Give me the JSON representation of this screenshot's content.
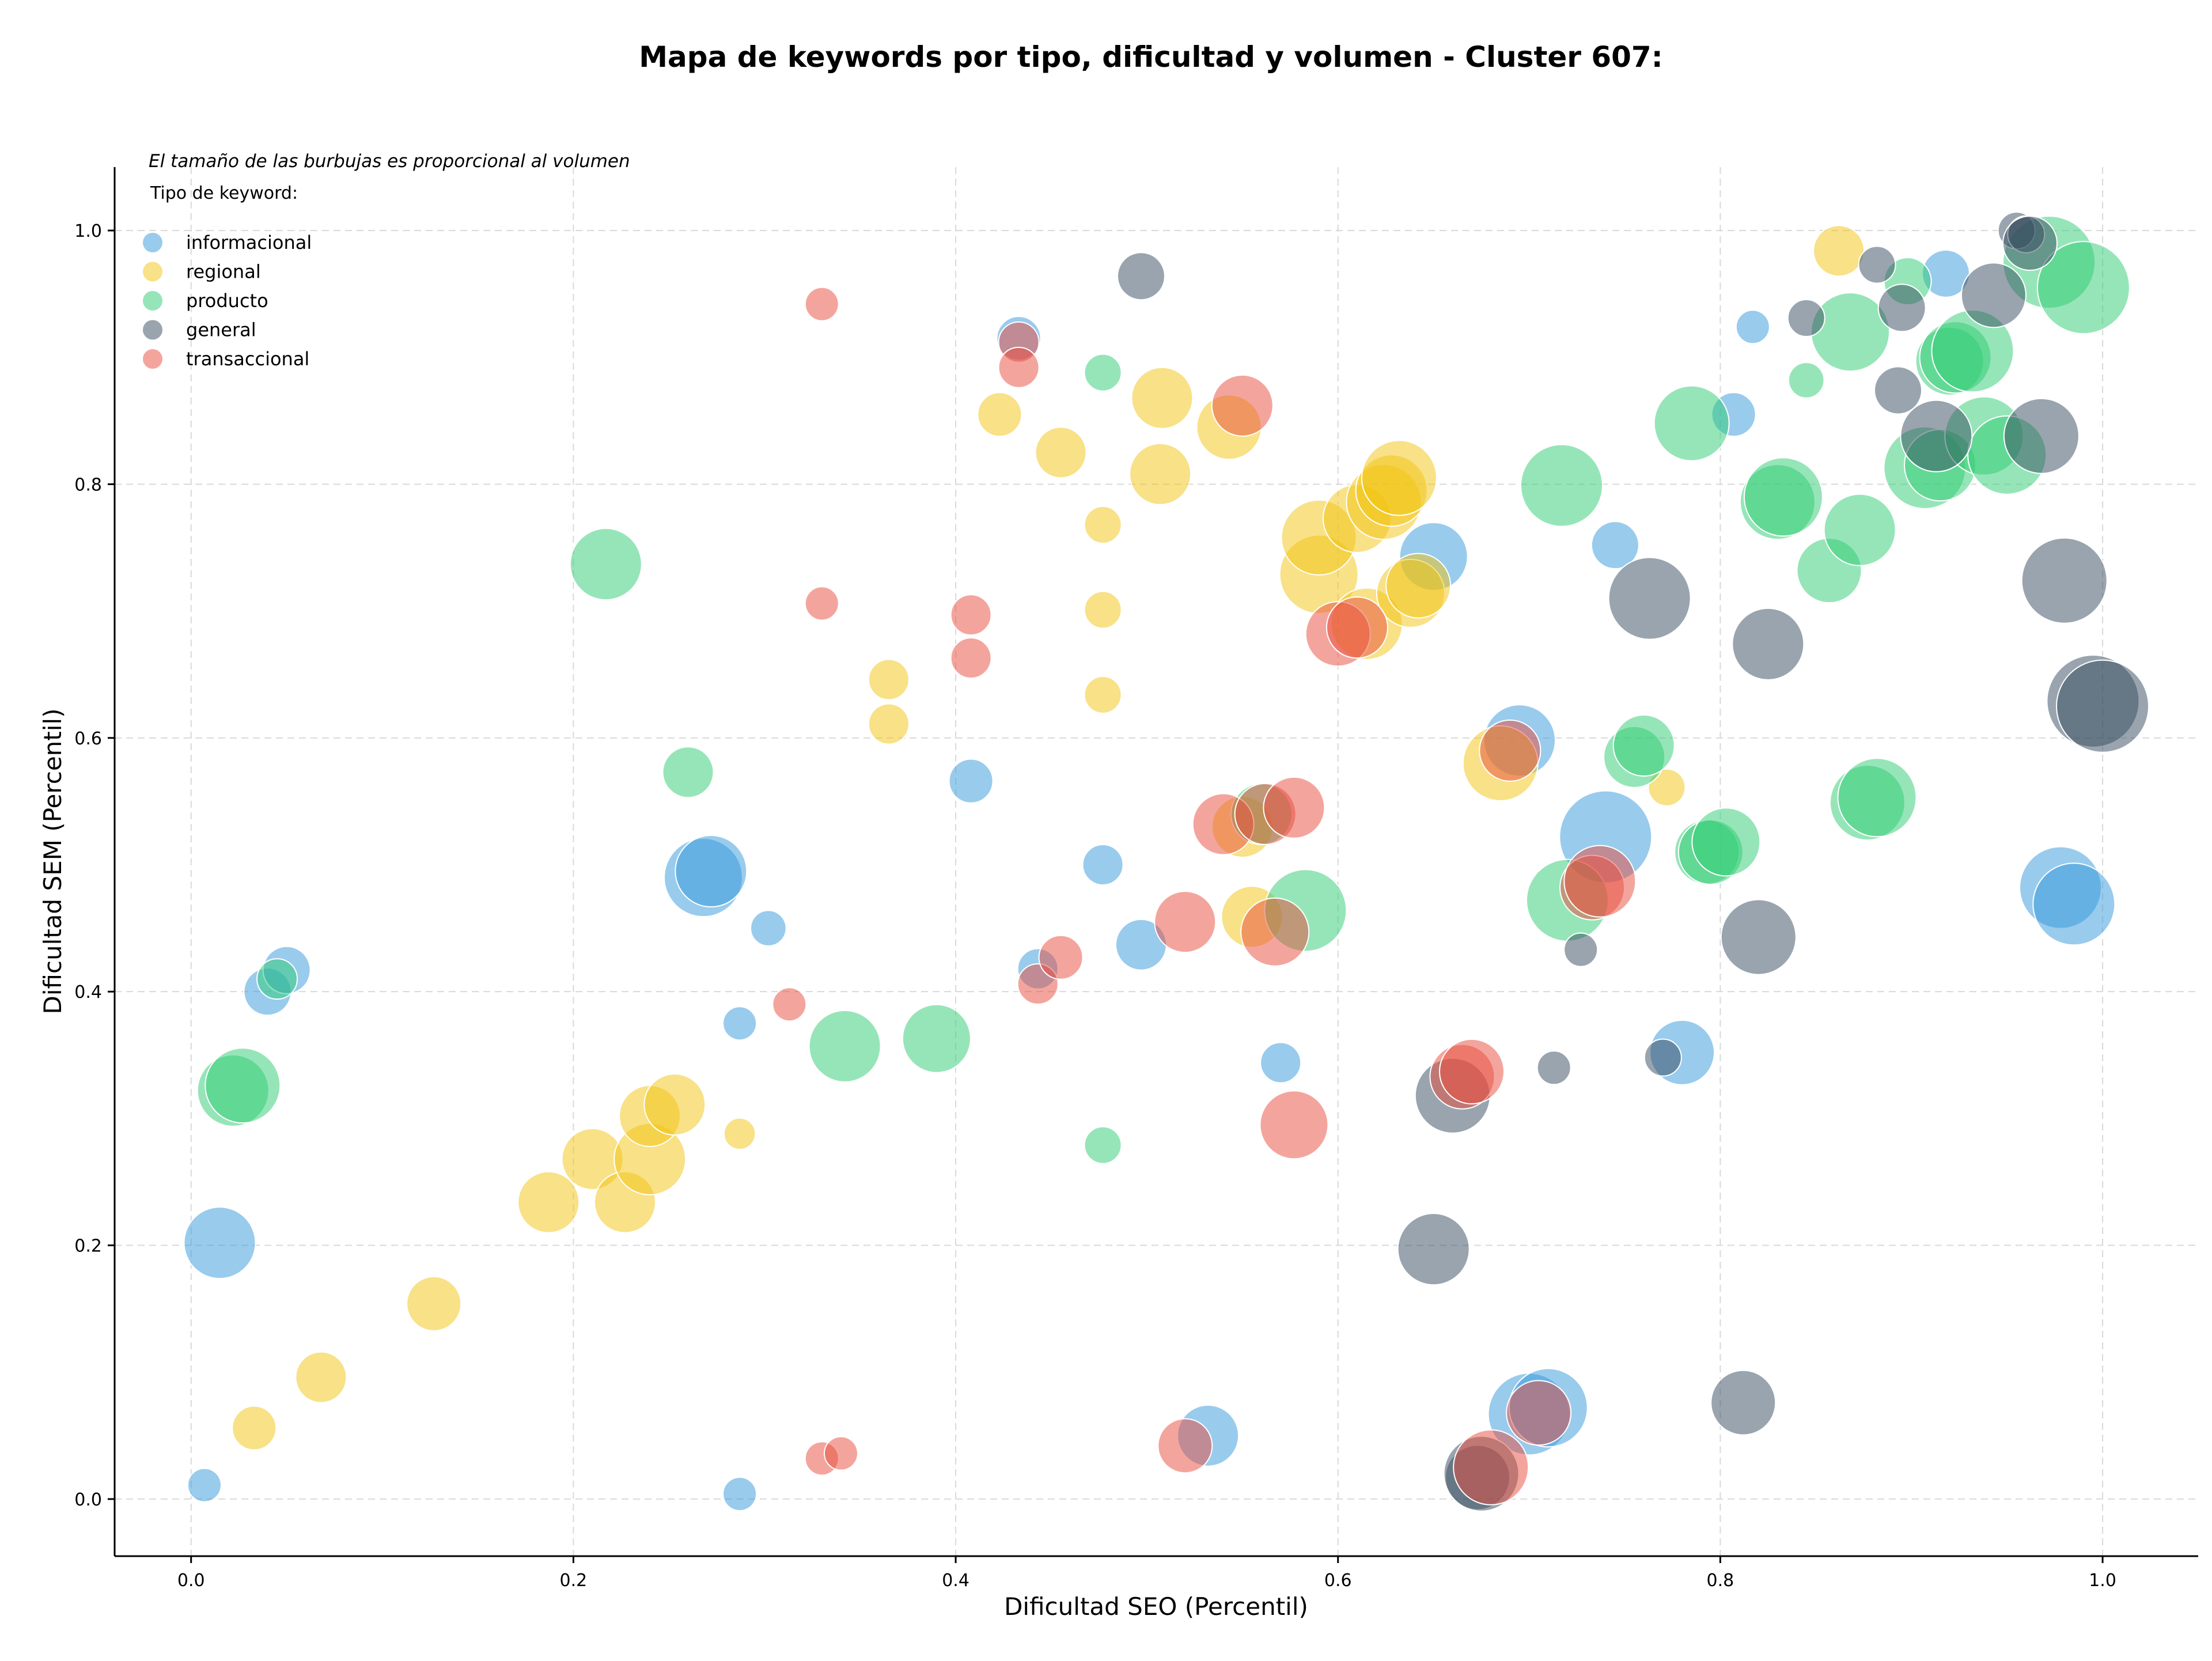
{
  "chart_data": {
    "type": "scatter",
    "title": "Mapa de keywords por tipo, dificultad y volumen - Cluster 607:",
    "subtitle": "El tamaño de las burbujas es proporcional al volumen",
    "xlabel": "Dificultad SEO (Percentil)",
    "ylabel": "Dificultad SEM (Percentil)",
    "xlim": [
      -0.04,
      1.05
    ],
    "ylim": [
      -0.045,
      1.05
    ],
    "xticks": [
      0.0,
      0.2,
      0.4,
      0.6,
      0.8,
      1.0
    ],
    "yticks": [
      0.0,
      0.2,
      0.4,
      0.6,
      0.8,
      1.0
    ],
    "xtick_labels": [
      "0.0",
      "0.2",
      "0.4",
      "0.6",
      "0.8",
      "1.0"
    ],
    "ytick_labels": [
      "0.0",
      "0.2",
      "0.4",
      "0.6",
      "0.8",
      "1.0"
    ],
    "grid": true,
    "legend_title": "Tipo de keyword:",
    "legend_position": "top-left",
    "series": [
      {
        "name": "informacional",
        "color": "#3498db",
        "points": [
          {
            "x": 0.007,
            "y": 0.011,
            "size": 0.15
          },
          {
            "x": 0.015,
            "y": 0.202,
            "size": 0.7
          },
          {
            "x": 0.04,
            "y": 0.4,
            "size": 0.35
          },
          {
            "x": 0.05,
            "y": 0.417,
            "size": 0.35
          },
          {
            "x": 0.268,
            "y": 0.49,
            "size": 0.8
          },
          {
            "x": 0.272,
            "y": 0.495,
            "size": 0.7
          },
          {
            "x": 0.287,
            "y": 0.004,
            "size": 0.15
          },
          {
            "x": 0.287,
            "y": 0.375,
            "size": 0.15
          },
          {
            "x": 0.302,
            "y": 0.45,
            "size": 0.18
          },
          {
            "x": 0.408,
            "y": 0.566,
            "size": 0.3
          },
          {
            "x": 0.433,
            "y": 0.915,
            "size": 0.3
          },
          {
            "x": 0.443,
            "y": 0.418,
            "size": 0.25
          },
          {
            "x": 0.477,
            "y": 0.5,
            "size": 0.25
          },
          {
            "x": 0.497,
            "y": 0.437,
            "size": 0.4
          },
          {
            "x": 0.532,
            "y": 0.05,
            "size": 0.55
          },
          {
            "x": 0.57,
            "y": 0.344,
            "size": 0.25
          },
          {
            "x": 0.65,
            "y": 0.743,
            "size": 0.65
          },
          {
            "x": 0.695,
            "y": 0.598,
            "size": 0.7
          },
          {
            "x": 0.7,
            "y": 0.067,
            "size": 0.85
          },
          {
            "x": 0.71,
            "y": 0.072,
            "size": 0.8
          },
          {
            "x": 0.74,
            "y": 0.522,
            "size": 1.0
          },
          {
            "x": 0.745,
            "y": 0.752,
            "size": 0.35
          },
          {
            "x": 0.78,
            "y": 0.352,
            "size": 0.6
          },
          {
            "x": 0.807,
            "y": 0.855,
            "size": 0.3
          },
          {
            "x": 0.817,
            "y": 0.924,
            "size": 0.15
          },
          {
            "x": 0.918,
            "y": 0.966,
            "size": 0.35
          },
          {
            "x": 0.978,
            "y": 0.482,
            "size": 0.85
          },
          {
            "x": 0.985,
            "y": 0.469,
            "size": 0.85
          }
        ]
      },
      {
        "name": "regional",
        "color": "#f1c40f",
        "points": [
          {
            "x": 0.033,
            "y": 0.056,
            "size": 0.3
          },
          {
            "x": 0.068,
            "y": 0.096,
            "size": 0.4
          },
          {
            "x": 0.127,
            "y": 0.154,
            "size": 0.45
          },
          {
            "x": 0.187,
            "y": 0.234,
            "size": 0.55
          },
          {
            "x": 0.21,
            "y": 0.268,
            "size": 0.55
          },
          {
            "x": 0.227,
            "y": 0.234,
            "size": 0.55
          },
          {
            "x": 0.24,
            "y": 0.268,
            "size": 0.7
          },
          {
            "x": 0.24,
            "y": 0.302,
            "size": 0.55
          },
          {
            "x": 0.253,
            "y": 0.311,
            "size": 0.55
          },
          {
            "x": 0.287,
            "y": 0.288,
            "size": 0.12
          },
          {
            "x": 0.365,
            "y": 0.646,
            "size": 0.25
          },
          {
            "x": 0.365,
            "y": 0.611,
            "size": 0.25
          },
          {
            "x": 0.423,
            "y": 0.855,
            "size": 0.3
          },
          {
            "x": 0.455,
            "y": 0.825,
            "size": 0.4
          },
          {
            "x": 0.477,
            "y": 0.768,
            "size": 0.2
          },
          {
            "x": 0.477,
            "y": 0.701,
            "size": 0.2
          },
          {
            "x": 0.477,
            "y": 0.634,
            "size": 0.2
          },
          {
            "x": 0.507,
            "y": 0.808,
            "size": 0.55
          },
          {
            "x": 0.508,
            "y": 0.868,
            "size": 0.55
          },
          {
            "x": 0.543,
            "y": 0.845,
            "size": 0.6
          },
          {
            "x": 0.55,
            "y": 0.53,
            "size": 0.55
          },
          {
            "x": 0.555,
            "y": 0.459,
            "size": 0.55
          },
          {
            "x": 0.59,
            "y": 0.729,
            "size": 0.8
          },
          {
            "x": 0.59,
            "y": 0.758,
            "size": 0.75
          },
          {
            "x": 0.615,
            "y": 0.69,
            "size": 0.7
          },
          {
            "x": 0.61,
            "y": 0.773,
            "size": 0.65
          },
          {
            "x": 0.624,
            "y": 0.786,
            "size": 0.75
          },
          {
            "x": 0.628,
            "y": 0.795,
            "size": 0.7
          },
          {
            "x": 0.632,
            "y": 0.805,
            "size": 0.75
          },
          {
            "x": 0.638,
            "y": 0.714,
            "size": 0.65
          },
          {
            "x": 0.642,
            "y": 0.72,
            "size": 0.6
          },
          {
            "x": 0.685,
            "y": 0.58,
            "size": 0.75
          },
          {
            "x": 0.772,
            "y": 0.561,
            "size": 0.2
          },
          {
            "x": 0.862,
            "y": 0.984,
            "size": 0.4
          }
        ]
      },
      {
        "name": "producto",
        "color": "#2ecc71",
        "points": [
          {
            "x": 0.022,
            "y": 0.322,
            "size": 0.7
          },
          {
            "x": 0.027,
            "y": 0.326,
            "size": 0.75
          },
          {
            "x": 0.045,
            "y": 0.41,
            "size": 0.25
          },
          {
            "x": 0.217,
            "y": 0.737,
            "size": 0.7
          },
          {
            "x": 0.26,
            "y": 0.573,
            "size": 0.4
          },
          {
            "x": 0.342,
            "y": 0.357,
            "size": 0.7
          },
          {
            "x": 0.39,
            "y": 0.363,
            "size": 0.65
          },
          {
            "x": 0.477,
            "y": 0.279,
            "size": 0.2
          },
          {
            "x": 0.477,
            "y": 0.888,
            "size": 0.2
          },
          {
            "x": 0.56,
            "y": 0.54,
            "size": 0.55
          },
          {
            "x": 0.583,
            "y": 0.464,
            "size": 0.85
          },
          {
            "x": 0.717,
            "y": 0.799,
            "size": 0.85
          },
          {
            "x": 0.72,
            "y": 0.472,
            "size": 0.85
          },
          {
            "x": 0.755,
            "y": 0.585,
            "size": 0.55
          },
          {
            "x": 0.76,
            "y": 0.594,
            "size": 0.55
          },
          {
            "x": 0.785,
            "y": 0.848,
            "size": 0.75
          },
          {
            "x": 0.793,
            "y": 0.51,
            "size": 0.6
          },
          {
            "x": 0.795,
            "y": 0.51,
            "size": 0.6
          },
          {
            "x": 0.803,
            "y": 0.518,
            "size": 0.65
          },
          {
            "x": 0.83,
            "y": 0.786,
            "size": 0.75
          },
          {
            "x": 0.833,
            "y": 0.79,
            "size": 0.8
          },
          {
            "x": 0.845,
            "y": 0.882,
            "size": 0.18
          },
          {
            "x": 0.857,
            "y": 0.732,
            "size": 0.6
          },
          {
            "x": 0.868,
            "y": 0.92,
            "size": 0.8
          },
          {
            "x": 0.873,
            "y": 0.764,
            "size": 0.7
          },
          {
            "x": 0.877,
            "y": 0.549,
            "size": 0.75
          },
          {
            "x": 0.882,
            "y": 0.553,
            "size": 0.8
          },
          {
            "x": 0.898,
            "y": 0.96,
            "size": 0.35
          },
          {
            "x": 0.907,
            "y": 0.813,
            "size": 0.85
          },
          {
            "x": 0.915,
            "y": 0.815,
            "size": 0.7
          },
          {
            "x": 0.92,
            "y": 0.897,
            "size": 0.65
          },
          {
            "x": 0.923,
            "y": 0.9,
            "size": 0.7
          },
          {
            "x": 0.932,
            "y": 0.905,
            "size": 0.85
          },
          {
            "x": 0.938,
            "y": 0.838,
            "size": 0.8
          },
          {
            "x": 0.95,
            "y": 0.823,
            "size": 0.8
          },
          {
            "x": 0.972,
            "y": 0.975,
            "size": 1.0
          },
          {
            "x": 0.99,
            "y": 0.955,
            "size": 1.0
          }
        ]
      },
      {
        "name": "general",
        "color": "#34495e",
        "points": [
          {
            "x": 0.497,
            "y": 0.964,
            "size": 0.35
          },
          {
            "x": 0.65,
            "y": 0.197,
            "size": 0.7
          },
          {
            "x": 0.66,
            "y": 0.318,
            "size": 0.75
          },
          {
            "x": 0.673,
            "y": 0.017,
            "size": 0.6
          },
          {
            "x": 0.675,
            "y": 0.02,
            "size": 0.75
          },
          {
            "x": 0.713,
            "y": 0.34,
            "size": 0.15
          },
          {
            "x": 0.727,
            "y": 0.433,
            "size": 0.15
          },
          {
            "x": 0.763,
            "y": 0.71,
            "size": 0.85
          },
          {
            "x": 0.77,
            "y": 0.348,
            "size": 0.2
          },
          {
            "x": 0.812,
            "y": 0.076,
            "size": 0.6
          },
          {
            "x": 0.82,
            "y": 0.443,
            "size": 0.75
          },
          {
            "x": 0.825,
            "y": 0.674,
            "size": 0.7
          },
          {
            "x": 0.845,
            "y": 0.931,
            "size": 0.2
          },
          {
            "x": 0.882,
            "y": 0.973,
            "size": 0.2
          },
          {
            "x": 0.893,
            "y": 0.874,
            "size": 0.35
          },
          {
            "x": 0.895,
            "y": 0.939,
            "size": 0.35
          },
          {
            "x": 0.913,
            "y": 0.838,
            "size": 0.7
          },
          {
            "x": 0.943,
            "y": 0.949,
            "size": 0.6
          },
          {
            "x": 0.955,
            "y": 1.0,
            "size": 0.2
          },
          {
            "x": 0.96,
            "y": 0.997,
            "size": 0.2
          },
          {
            "x": 0.962,
            "y": 0.99,
            "size": 0.45
          },
          {
            "x": 0.968,
            "y": 0.838,
            "size": 0.75
          },
          {
            "x": 0.98,
            "y": 0.724,
            "size": 0.9
          },
          {
            "x": 0.995,
            "y": 0.629,
            "size": 1.0
          },
          {
            "x": 1.0,
            "y": 0.625,
            "size": 1.0
          }
        ]
      },
      {
        "name": "transaccional",
        "color": "#e74c3c",
        "points": [
          {
            "x": 0.33,
            "y": 0.942,
            "size": 0.15
          },
          {
            "x": 0.33,
            "y": 0.706,
            "size": 0.15
          },
          {
            "x": 0.33,
            "y": 0.032,
            "size": 0.15
          },
          {
            "x": 0.34,
            "y": 0.036,
            "size": 0.15
          },
          {
            "x": 0.313,
            "y": 0.39,
            "size": 0.15
          },
          {
            "x": 0.408,
            "y": 0.697,
            "size": 0.25
          },
          {
            "x": 0.408,
            "y": 0.663,
            "size": 0.25
          },
          {
            "x": 0.433,
            "y": 0.912,
            "size": 0.25
          },
          {
            "x": 0.433,
            "y": 0.892,
            "size": 0.25
          },
          {
            "x": 0.443,
            "y": 0.406,
            "size": 0.25
          },
          {
            "x": 0.455,
            "y": 0.427,
            "size": 0.3
          },
          {
            "x": 0.52,
            "y": 0.042,
            "size": 0.45
          },
          {
            "x": 0.52,
            "y": 0.455,
            "size": 0.55
          },
          {
            "x": 0.54,
            "y": 0.532,
            "size": 0.55
          },
          {
            "x": 0.55,
            "y": 0.862,
            "size": 0.55
          },
          {
            "x": 0.562,
            "y": 0.54,
            "size": 0.55
          },
          {
            "x": 0.567,
            "y": 0.447,
            "size": 0.65
          },
          {
            "x": 0.577,
            "y": 0.295,
            "size": 0.65
          },
          {
            "x": 0.577,
            "y": 0.545,
            "size": 0.55
          },
          {
            "x": 0.6,
            "y": 0.682,
            "size": 0.6
          },
          {
            "x": 0.61,
            "y": 0.687,
            "size": 0.55
          },
          {
            "x": 0.665,
            "y": 0.333,
            "size": 0.6
          },
          {
            "x": 0.67,
            "y": 0.337,
            "size": 0.6
          },
          {
            "x": 0.68,
            "y": 0.025,
            "size": 0.75
          },
          {
            "x": 0.69,
            "y": 0.59,
            "size": 0.55
          },
          {
            "x": 0.705,
            "y": 0.068,
            "size": 0.6
          },
          {
            "x": 0.733,
            "y": 0.482,
            "size": 0.6
          },
          {
            "x": 0.737,
            "y": 0.487,
            "size": 0.7
          }
        ]
      }
    ]
  }
}
